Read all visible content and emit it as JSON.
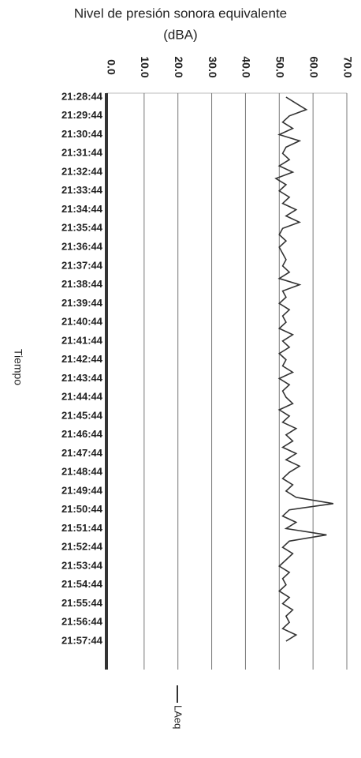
{
  "chart_data": {
    "type": "line",
    "orientation": "horizontal",
    "title": [
      "Nivel de presión sonora equivalente",
      "(dBA)"
    ],
    "ylabel": "Tiempo",
    "categories": [
      "21:28:44",
      null,
      null,
      "21:29:44",
      null,
      null,
      "21:30:44",
      null,
      null,
      "21:31:44",
      null,
      null,
      "21:32:44",
      null,
      null,
      "21:33:44",
      null,
      null,
      "21:34:44",
      null,
      null,
      "21:35:44",
      null,
      null,
      "21:36:44",
      null,
      null,
      "21:37:44",
      null,
      null,
      "21:38:44",
      null,
      null,
      "21:39:44",
      null,
      null,
      "21:40:44",
      null,
      null,
      "21:41:44",
      null,
      null,
      "21:42:44",
      null,
      null,
      "21:43:44",
      null,
      null,
      "21:44:44",
      null,
      null,
      "21:45:44",
      null,
      null,
      "21:46:44",
      null,
      null,
      "21:47:44",
      null,
      null,
      "21:48:44",
      null,
      null,
      "21:49:44",
      null,
      null,
      "21:50:44",
      null,
      null,
      "21:51:44",
      null,
      null,
      "21:52:44",
      null,
      null,
      "21:53:44",
      null,
      null,
      "21:54:44",
      null,
      null,
      "21:55:44",
      null,
      null,
      "21:56:44",
      null,
      null,
      "21:57:44"
    ],
    "series": [
      {
        "name": "LAeq",
        "color": "#333333",
        "values": [
          52,
          55,
          58,
          53,
          51,
          54,
          50,
          56,
          52,
          51,
          53,
          50,
          54,
          49,
          52,
          50,
          53,
          51,
          55,
          52,
          56,
          51,
          50,
          52,
          50,
          51,
          52,
          51,
          53,
          50,
          56,
          51,
          52,
          50,
          53,
          51,
          52,
          50,
          54,
          51,
          53,
          50,
          52,
          51,
          54,
          50,
          53,
          51,
          52,
          54,
          50,
          53,
          51,
          55,
          52,
          54,
          51,
          55,
          52,
          56,
          53,
          51,
          54,
          52,
          55,
          66,
          53,
          51,
          55,
          52,
          64,
          53,
          51,
          54,
          52,
          50,
          53,
          51,
          52,
          50,
          53,
          51,
          54,
          52,
          53,
          51,
          55,
          52
        ]
      }
    ],
    "xlim": [
      0,
      70
    ],
    "xticks": [
      {
        "value": 0,
        "label": "0.0"
      },
      {
        "value": 10,
        "label": "10.0"
      },
      {
        "value": 20,
        "label": "20.0"
      },
      {
        "value": 30,
        "label": "30.0"
      },
      {
        "value": 40,
        "label": "40.0"
      },
      {
        "value": 50,
        "label": "50.0"
      },
      {
        "value": 60,
        "label": "60.0"
      },
      {
        "value": 70,
        "label": "70.0"
      }
    ],
    "grid": true,
    "legend": "bottom"
  }
}
